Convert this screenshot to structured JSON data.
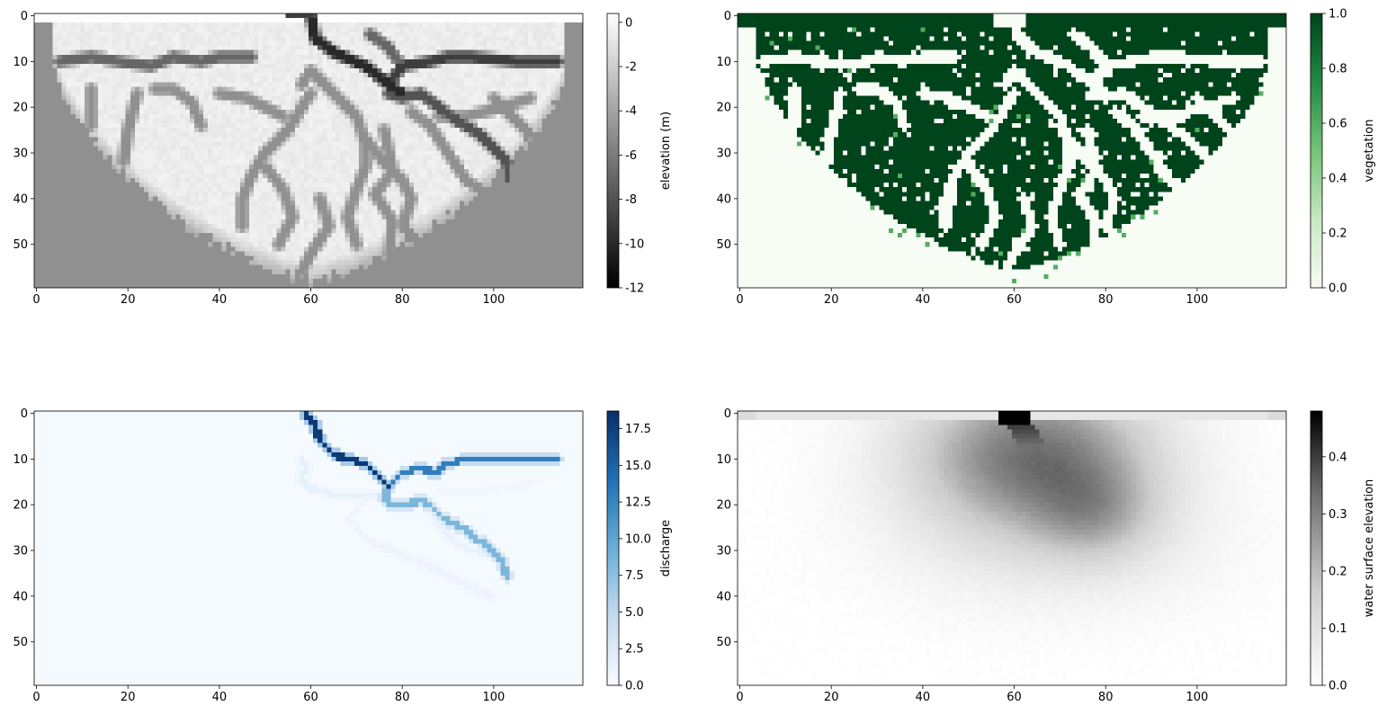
{
  "chart_data": [
    {
      "type": "heatmap",
      "title": "",
      "xlabel": "",
      "ylabel": "",
      "colorbar_label": "elevation (m)",
      "colormap": "greys",
      "grid_shape": [
        60,
        120
      ],
      "xlim": [
        0,
        119
      ],
      "ylim": [
        59,
        0
      ],
      "x_ticks": [
        0,
        20,
        40,
        60,
        80,
        100
      ],
      "y_ticks": [
        0,
        10,
        20,
        30,
        40,
        50
      ],
      "clim": [
        -12,
        0.4
      ],
      "colorbar_ticks": [
        0,
        -2,
        -4,
        -6,
        -8,
        -10,
        -12
      ],
      "fill_value": -5,
      "land_value": -0.2,
      "description_values": {
        "land_extent_rows": [
          2,
          58
        ],
        "channels": [
          {
            "points": [
              [
                60,
                0
              ],
              [
                61,
                5
              ],
              [
                65,
                8
              ],
              [
                72,
                11
              ],
              [
                77,
                15
              ],
              [
                80,
                17
              ]
            ],
            "value": -10
          },
          {
            "points": [
              [
                77,
                15
              ],
              [
                80,
                11
              ],
              [
                86,
                10
              ],
              [
                90,
                9
              ],
              [
                95,
                9
              ],
              [
                105,
                10
              ],
              [
                114,
                10
              ]
            ],
            "value": -9
          },
          {
            "points": [
              [
                77,
                17
              ],
              [
                80,
                18
              ],
              [
                84,
                17
              ],
              [
                88,
                20
              ],
              [
                92,
                23
              ],
              [
                97,
                26
              ],
              [
                100,
                29
              ],
              [
                103,
                32
              ],
              [
                103,
                36
              ]
            ],
            "value": -8
          },
          {
            "points": [
              [
                5,
                10
              ],
              [
                12,
                9
              ],
              [
                18,
                10
              ],
              [
                25,
                11
              ],
              [
                30,
                9
              ],
              [
                36,
                10
              ],
              [
                40,
                9
              ],
              [
                47,
                9
              ]
            ],
            "value": -7
          },
          {
            "points": [
              [
                73,
                4
              ],
              [
                77,
                7
              ],
              [
                80,
                11
              ]
            ],
            "value": -7
          },
          {
            "points": [
              [
                60,
                17
              ],
              [
                58,
                20
              ],
              [
                55,
                25
              ],
              [
                50,
                30
              ],
              [
                47,
                35
              ],
              [
                45,
                40
              ],
              [
                45,
                46
              ]
            ],
            "value": -5
          },
          {
            "points": [
              [
                62,
                14
              ],
              [
                66,
                18
              ],
              [
                70,
                22
              ],
              [
                72,
                28
              ],
              [
                72,
                33
              ],
              [
                70,
                38
              ],
              [
                68,
                44
              ],
              [
                70,
                50
              ]
            ],
            "value": -5
          },
          {
            "points": [
              [
                58,
                15
              ],
              [
                60,
                12
              ],
              [
                62,
                14
              ]
            ],
            "value": -5
          },
          {
            "points": [
              [
                82,
                21
              ],
              [
                86,
                24
              ],
              [
                90,
                30
              ],
              [
                94,
                36
              ],
              [
                100,
                40
              ]
            ],
            "value": -5
          },
          {
            "points": [
              [
                72,
                27
              ],
              [
                76,
                32
              ],
              [
                80,
                36
              ],
              [
                82,
                40
              ],
              [
                80,
                46
              ],
              [
                84,
                50
              ],
              [
                86,
                53
              ]
            ],
            "value": -5
          },
          {
            "points": [
              [
                40,
                17
              ],
              [
                46,
                18
              ],
              [
                50,
                20
              ],
              [
                54,
                22
              ]
            ],
            "value": -5
          },
          {
            "points": [
              [
                22,
                17
              ],
              [
                20,
                25
              ],
              [
                19,
                32
              ]
            ],
            "value": -5
          },
          {
            "points": [
              [
                12,
                16
              ],
              [
                12,
                24
              ]
            ],
            "value": -5
          },
          {
            "points": [
              [
                26,
                16
              ],
              [
                30,
                16
              ],
              [
                34,
                19
              ],
              [
                36,
                24
              ]
            ],
            "value": -5
          },
          {
            "points": [
              [
                76,
                25
              ],
              [
                78,
                34
              ],
              [
                74,
                39
              ],
              [
                78,
                45
              ],
              [
                77,
                52
              ]
            ],
            "value": -5
          },
          {
            "points": [
              [
                100,
                18
              ],
              [
                104,
                22
              ],
              [
                108,
                26
              ]
            ],
            "value": -5
          },
          {
            "points": [
              [
                88,
                22
              ],
              [
                94,
                22
              ],
              [
                102,
                20
              ],
              [
                108,
                18
              ]
            ],
            "value": -5
          },
          {
            "points": [
              [
                50,
                33
              ],
              [
                54,
                38
              ],
              [
                56,
                44
              ],
              [
                53,
                50
              ]
            ],
            "value": -5
          },
          {
            "points": [
              [
                62,
                40
              ],
              [
                64,
                46
              ],
              [
                60,
                52
              ],
              [
                58,
                56
              ]
            ],
            "value": -5
          }
        ]
      }
    },
    {
      "type": "heatmap",
      "title": "",
      "xlabel": "",
      "ylabel": "",
      "colorbar_label": "vegetation",
      "colormap": "greens",
      "grid_shape": [
        60,
        120
      ],
      "xlim": [
        0,
        119
      ],
      "ylim": [
        59,
        0
      ],
      "x_ticks": [
        0,
        20,
        40,
        60,
        80,
        100
      ],
      "y_ticks": [
        0,
        10,
        20,
        30,
        40,
        50
      ],
      "clim": [
        0,
        1
      ],
      "colorbar_ticks": [
        0.0,
        0.2,
        0.4,
        0.6,
        0.8,
        1.0
      ],
      "colorbar_tick_labels": [
        "0.0",
        "0.2",
        "0.4",
        "0.6",
        "0.8",
        "1.0"
      ],
      "top_rows_value": 1.0,
      "vegetated_value": 1.0,
      "bare_value": 0.0
    },
    {
      "type": "heatmap",
      "title": "",
      "xlabel": "",
      "ylabel": "",
      "colorbar_label": "discharge",
      "colormap": "blues",
      "grid_shape": [
        60,
        120
      ],
      "xlim": [
        0,
        119
      ],
      "ylim": [
        59,
        0
      ],
      "x_ticks": [
        0,
        20,
        40,
        60,
        80,
        100
      ],
      "y_ticks": [
        0,
        10,
        20,
        30,
        40,
        50
      ],
      "clim": [
        0,
        18.7
      ],
      "colorbar_ticks": [
        0.0,
        2.5,
        5.0,
        7.5,
        10.0,
        12.5,
        15.0,
        17.5
      ],
      "colorbar_tick_labels": [
        "0.0",
        "2.5",
        "5.0",
        "7.5",
        "10.0",
        "12.5",
        "15.0",
        "17.5"
      ],
      "channels": [
        {
          "points": [
            [
              59,
              0
            ],
            [
              61,
              3
            ],
            [
              62,
              6
            ],
            [
              65,
              9
            ],
            [
              68,
              10
            ],
            [
              72,
              11
            ],
            [
              74,
              13
            ],
            [
              77,
              16
            ]
          ],
          "value": 18
        },
        {
          "points": [
            [
              77,
              16
            ],
            [
              80,
              13
            ],
            [
              84,
              12
            ],
            [
              87,
              13
            ],
            [
              90,
              11
            ],
            [
              94,
              10
            ],
            [
              100,
              10
            ],
            [
              107,
              10
            ],
            [
              114,
              10
            ]
          ],
          "value": 13
        },
        {
          "points": [
            [
              77,
              16
            ],
            [
              76,
              19
            ],
            [
              78,
              20
            ],
            [
              81,
              20
            ],
            [
              84,
              19
            ],
            [
              86,
              20
            ],
            [
              89,
              23
            ],
            [
              93,
              25
            ],
            [
              97,
              28
            ],
            [
              100,
              30
            ],
            [
              102,
              33
            ],
            [
              103,
              36
            ]
          ],
          "value": 8.5
        },
        {
          "points": [
            [
              58,
              10
            ],
            [
              59,
              12
            ],
            [
              58,
              14
            ],
            [
              59,
              16
            ],
            [
              62,
              17
            ],
            [
              66,
              18
            ],
            [
              71,
              18
            ],
            [
              75,
              18
            ]
          ],
          "value": 1.5
        },
        {
          "points": [
            [
              86,
              21
            ],
            [
              89,
              26
            ],
            [
              93,
              29
            ],
            [
              98,
              31
            ],
            [
              102,
              32
            ]
          ],
          "value": 1.2
        },
        {
          "points": [
            [
              72,
              19
            ],
            [
              68,
              23
            ],
            [
              73,
              28
            ],
            [
              80,
              31
            ],
            [
              85,
              33
            ],
            [
              89,
              35
            ],
            [
              93,
              37
            ],
            [
              97,
              39
            ],
            [
              100,
              40
            ]
          ],
          "value": 1.0
        },
        {
          "points": [
            [
              88,
              17
            ],
            [
              96,
              17
            ],
            [
              104,
              16
            ],
            [
              110,
              15
            ]
          ],
          "value": 0.6
        }
      ]
    },
    {
      "type": "heatmap",
      "title": "",
      "xlabel": "",
      "ylabel": "",
      "colorbar_label": "water surface elevation",
      "colormap": "greys",
      "grid_shape": [
        60,
        120
      ],
      "xlim": [
        0,
        119
      ],
      "ylim": [
        59,
        0
      ],
      "x_ticks": [
        0,
        20,
        40,
        60,
        80,
        100
      ],
      "y_ticks": [
        0,
        10,
        20,
        30,
        40,
        50
      ],
      "clim": [
        0,
        0.48
      ],
      "colorbar_ticks": [
        0.0,
        0.1,
        0.2,
        0.3,
        0.4
      ],
      "colorbar_tick_labels": [
        "0.0",
        "0.1",
        "0.2",
        "0.3",
        "0.4"
      ],
      "top_rows_value": 0.12,
      "inlet_value": 0.48,
      "inlet_columns": [
        57,
        63
      ]
    }
  ]
}
